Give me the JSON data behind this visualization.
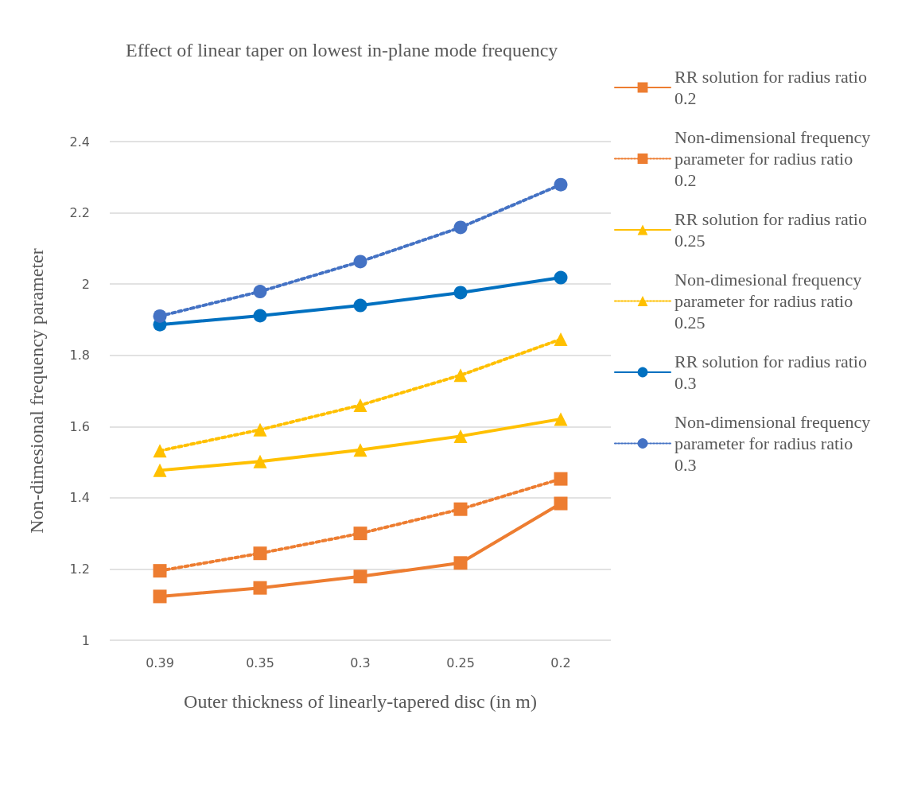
{
  "chart_data": {
    "type": "line",
    "title": "Effect of linear taper on lowest in-plane mode frequency",
    "xlabel": "Outer thickness of linearly-tapered disc (in m)",
    "ylabel": "Non-dimesional frequency parameter",
    "categories": [
      "0.39",
      "0.35",
      "0.3",
      "0.25",
      "0.2"
    ],
    "ylim": [
      1,
      2.4
    ],
    "yticks": [
      1,
      1.2,
      1.4,
      1.6,
      1.8,
      2,
      2.2,
      2.4
    ],
    "grid": "y",
    "legend": "right",
    "series": [
      {
        "name": "RR solution for radius ratio 0.2",
        "color": "#ed7d31",
        "marker": "square",
        "line_style": "solid",
        "values": [
          1.123,
          1.147,
          1.179,
          1.217,
          1.384
        ]
      },
      {
        "name": "Non-dimensional frequency parameter for radius ratio 0.2",
        "color": "#ed7d31",
        "marker": "square",
        "line_style": "dotted",
        "values": [
          1.195,
          1.244,
          1.3,
          1.368,
          1.453
        ]
      },
      {
        "name": "RR solution for radius ratio 0.25",
        "color": "#ffc000",
        "marker": "triangle",
        "line_style": "solid",
        "values": [
          1.477,
          1.502,
          1.534,
          1.573,
          1.621
        ]
      },
      {
        "name": "Non-dimesional frequency parameter for radius ratio 0.25",
        "color": "#ffc000",
        "marker": "triangle",
        "line_style": "dotted",
        "values": [
          1.532,
          1.591,
          1.66,
          1.744,
          1.845
        ]
      },
      {
        "name": "RR solution for radius ratio 0.3",
        "color": "#0070c0",
        "marker": "circle",
        "line_style": "solid",
        "values": [
          1.886,
          1.911,
          1.94,
          1.976,
          2.018
        ]
      },
      {
        "name": "Non-dimensional frequency parameter for radius ratio 0.3",
        "color": "#4472c4",
        "marker": "circle",
        "line_style": "dotted",
        "values": [
          1.91,
          1.979,
          2.063,
          2.159,
          2.279
        ]
      }
    ]
  }
}
